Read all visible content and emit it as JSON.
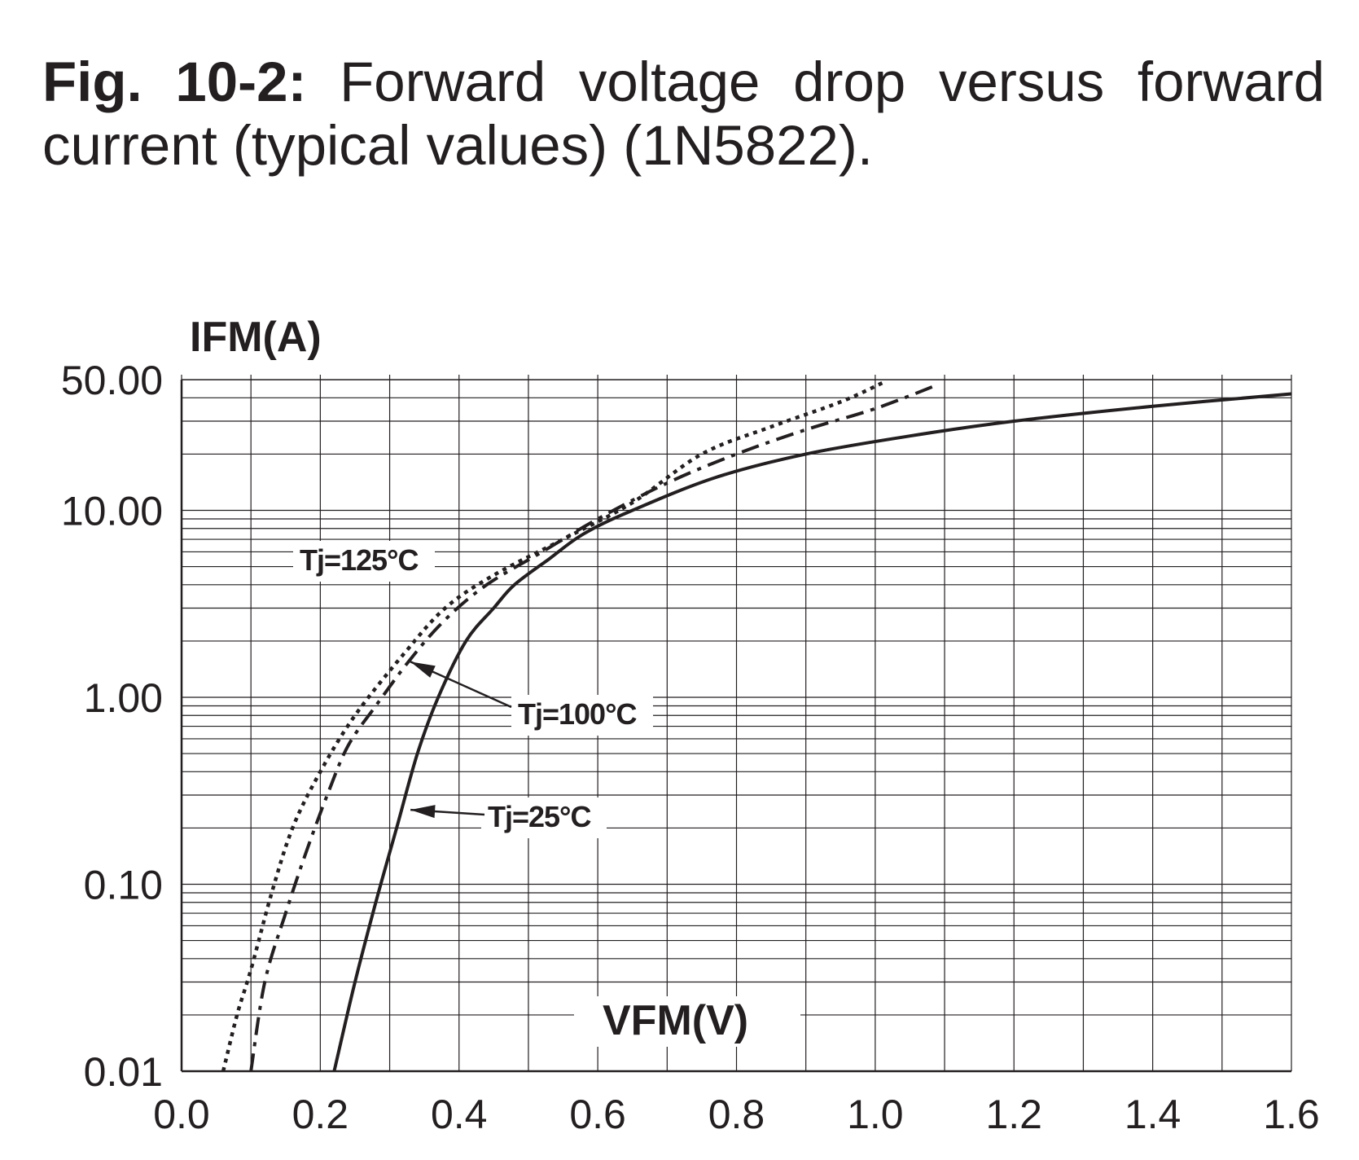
{
  "caption": {
    "prefix": "Fig. 10-2:",
    "text": "Forward voltage drop versus forward current (typical values) (1N5822)."
  },
  "chart_data": {
    "type": "line",
    "title": "Fig. 10-2: Forward voltage drop versus forward current (typical values) (1N5822).",
    "xlabel": "VFM(V)",
    "ylabel": "IFM(A)",
    "xlim": [
      0.0,
      1.6
    ],
    "ylim": [
      0.01,
      50.0
    ],
    "yscale": "log",
    "grid": true,
    "x_ticks": [
      "0.0",
      "0.2",
      "0.4",
      "0.6",
      "0.8",
      "1.0",
      "1.2",
      "1.4",
      "1.6"
    ],
    "y_ticks": [
      "0.01",
      "0.10",
      "1.00",
      "10.00",
      "50.00"
    ],
    "y_tick_values": [
      0.01,
      0.1,
      1,
      10,
      50
    ],
    "series": [
      {
        "name": "Tj=25°C",
        "style": "solid",
        "x": [
          0.22,
          0.25,
          0.28,
          0.31,
          0.34,
          0.37,
          0.41,
          0.45,
          0.48,
          0.53,
          0.58,
          0.65,
          0.77,
          0.9,
          1.05,
          1.2,
          1.4,
          1.6
        ],
        "y": [
          0.01,
          0.03,
          0.08,
          0.2,
          0.5,
          1.0,
          2.0,
          3.0,
          4.0,
          5.5,
          7.5,
          10.0,
          15.0,
          20.0,
          25.0,
          30.0,
          36.0,
          42.0
        ]
      },
      {
        "name": "Tj=100°C",
        "style": "dash-dot",
        "x": [
          0.1,
          0.12,
          0.15,
          0.18,
          0.21,
          0.24,
          0.28,
          0.33,
          0.38,
          0.44,
          0.52,
          0.6,
          0.7,
          0.8,
          0.9,
          1.0,
          1.09
        ],
        "y": [
          0.01,
          0.03,
          0.07,
          0.15,
          0.3,
          0.55,
          0.9,
          1.6,
          2.6,
          4.0,
          6.0,
          9.0,
          14.0,
          20.0,
          27.0,
          35.0,
          47.0
        ]
      },
      {
        "name": "Tj=125°C",
        "style": "dotted",
        "x": [
          0.06,
          0.08,
          0.1,
          0.13,
          0.16,
          0.2,
          0.25,
          0.32,
          0.38,
          0.45,
          0.55,
          0.65,
          0.75,
          0.85,
          0.95,
          1.01
        ],
        "y": [
          0.01,
          0.02,
          0.035,
          0.09,
          0.2,
          0.4,
          0.8,
          1.7,
          3.0,
          4.5,
          7.0,
          11.0,
          20.0,
          28.0,
          38.0,
          48.0
        ]
      }
    ],
    "annotations": [
      {
        "text": "Tj=125°C",
        "points_to": "Tj=125°C"
      },
      {
        "text": "Tj=100°C",
        "points_to": "Tj=100°C",
        "arrow_at": [
          0.33,
          1.55
        ]
      },
      {
        "text": "Tj=25°C",
        "points_to": "Tj=25°C",
        "arrow_at": [
          0.33,
          0.25
        ]
      }
    ],
    "colors": {
      "ink": "#231f20",
      "grid": "#231f20",
      "background": "#ffffff"
    }
  }
}
